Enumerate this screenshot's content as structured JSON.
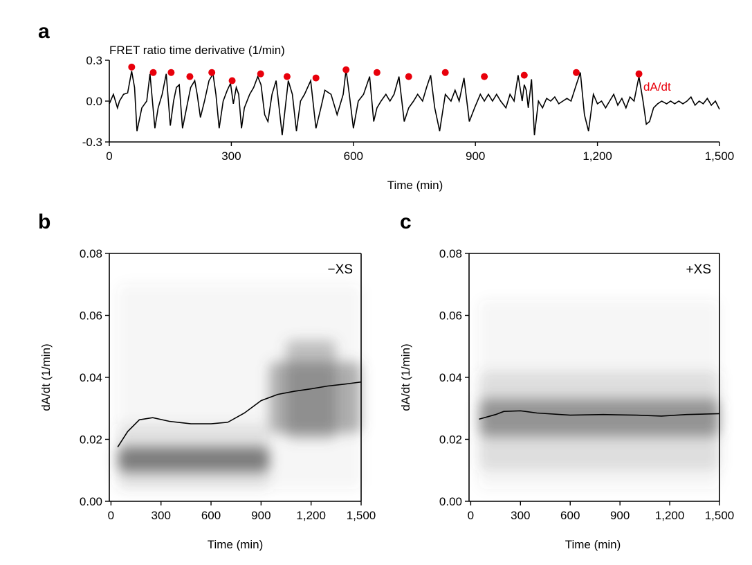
{
  "colors": {
    "peak": "#e8000b",
    "line": "#000000",
    "density": "#555555"
  },
  "panel_letters": {
    "a": "a",
    "b": "b",
    "c": "c"
  },
  "chart_data": [
    {
      "panel": "a",
      "type": "line",
      "title": "FRET ratio time derivative (1/min)",
      "xlabel": "Time (min)",
      "ylabel": "",
      "xlim": [
        0,
        1500
      ],
      "ylim": [
        -0.3,
        0.3
      ],
      "xticks": [
        0,
        300,
        600,
        900,
        1200,
        1500
      ],
      "xtick_labels": [
        "0",
        "300",
        "600",
        "900",
        "1,200",
        "1,500"
      ],
      "yticks": [
        -0.3,
        0.0,
        0.3
      ],
      "ytick_labels": [
        "-0.3",
        "0.0",
        "0.3"
      ],
      "grid": false,
      "annotation": "dA/dt",
      "trace_x": [
        0,
        10,
        20,
        25,
        35,
        45,
        55,
        62,
        68,
        80,
        92,
        100,
        112,
        120,
        130,
        140,
        150,
        158,
        165,
        172,
        180,
        190,
        200,
        210,
        216,
        224,
        234,
        245,
        255,
        262,
        270,
        280,
        290,
        298,
        305,
        312,
        318,
        325,
        332,
        345,
        355,
        365,
        373,
        382,
        390,
        400,
        410,
        425,
        440,
        450,
        460,
        470,
        480,
        495,
        508,
        520,
        530,
        545,
        560,
        575,
        582,
        590,
        600,
        612,
        625,
        640,
        650,
        658,
        668,
        680,
        690,
        700,
        712,
        725,
        736,
        748,
        758,
        770,
        780,
        790,
        800,
        812,
        826,
        840,
        850,
        860,
        872,
        885,
        898,
        912,
        922,
        932,
        942,
        952,
        962,
        975,
        985,
        995,
        1005,
        1015,
        1020,
        1025,
        1030,
        1038,
        1045,
        1055,
        1065,
        1075,
        1085,
        1095,
        1105,
        1115,
        1125,
        1135,
        1148,
        1158,
        1168,
        1178,
        1190,
        1200,
        1210,
        1220,
        1230,
        1240,
        1250,
        1260,
        1270,
        1280,
        1290,
        1302,
        1312,
        1320,
        1328,
        1338,
        1348,
        1358,
        1370,
        1380,
        1390,
        1400,
        1410,
        1420,
        1430,
        1440,
        1450,
        1460,
        1470,
        1480,
        1490,
        1500
      ],
      "trace_y": [
        -0.02,
        0.05,
        -0.05,
        0.0,
        0.05,
        0.06,
        0.22,
        0.1,
        -0.22,
        -0.05,
        0.0,
        0.2,
        -0.2,
        -0.05,
        0.05,
        0.2,
        -0.18,
        0.0,
        0.1,
        0.12,
        -0.2,
        -0.05,
        0.1,
        0.15,
        0.05,
        -0.12,
        0.0,
        0.15,
        0.2,
        0.05,
        -0.2,
        0.0,
        0.08,
        0.13,
        -0.02,
        0.1,
        0.05,
        -0.2,
        -0.05,
        0.05,
        0.1,
        0.18,
        0.12,
        -0.1,
        -0.15,
        0.05,
        0.15,
        -0.25,
        0.15,
        0.05,
        -0.22,
        0.0,
        0.05,
        0.15,
        -0.2,
        -0.05,
        0.08,
        0.05,
        -0.1,
        0.05,
        0.23,
        0.05,
        -0.2,
        0.0,
        0.05,
        0.18,
        -0.15,
        -0.05,
        0.0,
        0.05,
        0.0,
        0.05,
        0.18,
        -0.15,
        -0.05,
        0.0,
        0.05,
        0.0,
        0.1,
        0.19,
        -0.05,
        -0.22,
        0.05,
        0.0,
        0.08,
        0.0,
        0.17,
        -0.15,
        -0.05,
        0.05,
        0.0,
        0.05,
        0.0,
        0.05,
        0.0,
        -0.05,
        0.05,
        0.0,
        0.19,
        0.0,
        0.12,
        0.08,
        -0.05,
        0.16,
        -0.25,
        0.0,
        -0.05,
        0.02,
        0.0,
        0.03,
        -0.02,
        0.0,
        0.02,
        0.0,
        0.12,
        0.21,
        -0.1,
        -0.22,
        0.05,
        -0.02,
        0.0,
        -0.05,
        0.0,
        0.05,
        -0.03,
        0.02,
        -0.05,
        0.03,
        0.0,
        0.18,
        0.0,
        -0.17,
        -0.15,
        -0.05,
        -0.02,
        0.0,
        -0.02,
        0.0,
        -0.02,
        0.0,
        -0.02,
        0.0,
        0.03,
        -0.03,
        0.0,
        -0.02,
        0.02,
        -0.03,
        0.0,
        -0.06
      ],
      "peaks_x": [
        55,
        108,
        152,
        198,
        252,
        302,
        372,
        437,
        508,
        582,
        658,
        736,
        826,
        922,
        1020,
        1148,
        1302
      ],
      "peaks_y": [
        0.25,
        0.21,
        0.21,
        0.18,
        0.21,
        0.15,
        0.2,
        0.18,
        0.17,
        0.23,
        0.21,
        0.18,
        0.21,
        0.18,
        0.19,
        0.21,
        0.2
      ]
    },
    {
      "panel": "b",
      "type": "heatmap",
      "tag": "−XS",
      "xlabel": "Time (min)",
      "ylabel": "dA/dt (1/min)",
      "xlim": [
        -10,
        1500
      ],
      "ylim": [
        0.0,
        0.08
      ],
      "xticks": [
        0,
        300,
        600,
        900,
        1200,
        1500
      ],
      "xtick_labels": [
        "0",
        "300",
        "600",
        "900",
        "1,200",
        "1,500"
      ],
      "yticks": [
        0.0,
        0.02,
        0.04,
        0.06,
        0.08
      ],
      "ytick_labels": [
        "0.00",
        "0.02",
        "0.04",
        "0.06",
        "0.08"
      ],
      "grid": false,
      "density_blobs": [
        {
          "x": [
            40,
            950
          ],
          "y": [
            0.0095,
            0.0175
          ],
          "opacity": 0.7
        },
        {
          "x": [
            40,
            950
          ],
          "y": [
            0.004,
            0.025
          ],
          "opacity": 0.12
        },
        {
          "x": [
            950,
            1500
          ],
          "y": [
            0.022,
            0.045
          ],
          "opacity": 0.45
        },
        {
          "x": [
            1050,
            1350
          ],
          "y": [
            0.02,
            0.052
          ],
          "opacity": 0.35
        },
        {
          "x": [
            40,
            1500
          ],
          "y": [
            0.004,
            0.07
          ],
          "opacity": 0.05
        }
      ],
      "mean_x": [
        40,
        100,
        170,
        250,
        350,
        480,
        600,
        700,
        800,
        900,
        1000,
        1100,
        1200,
        1300,
        1400,
        1500
      ],
      "mean_y": [
        0.0175,
        0.0225,
        0.0263,
        0.027,
        0.0258,
        0.025,
        0.025,
        0.0255,
        0.0285,
        0.0325,
        0.0345,
        0.0355,
        0.0363,
        0.0372,
        0.0378,
        0.0385
      ]
    },
    {
      "panel": "c",
      "type": "heatmap",
      "tag": "+XS",
      "xlabel": "Time (min)",
      "ylabel": "dA/dt (1/min)",
      "xlim": [
        -10,
        1500
      ],
      "ylim": [
        0.0,
        0.08
      ],
      "xticks": [
        0,
        300,
        600,
        900,
        1200,
        1500
      ],
      "xtick_labels": [
        "0",
        "300",
        "600",
        "900",
        "1,200",
        "1,500"
      ],
      "yticks": [
        0.0,
        0.02,
        0.04,
        0.06,
        0.08
      ],
      "ytick_labels": [
        "0.00",
        "0.02",
        "0.04",
        "0.06",
        "0.08"
      ],
      "grid": false,
      "density_blobs": [
        {
          "x": [
            50,
            1500
          ],
          "y": [
            0.021,
            0.033
          ],
          "opacity": 0.55
        },
        {
          "x": [
            50,
            1500
          ],
          "y": [
            0.01,
            0.042
          ],
          "opacity": 0.15
        },
        {
          "x": [
            50,
            1500
          ],
          "y": [
            0.004,
            0.065
          ],
          "opacity": 0.05
        }
      ],
      "mean_x": [
        50,
        150,
        200,
        300,
        400,
        600,
        800,
        1000,
        1150,
        1300,
        1500
      ],
      "mean_y": [
        0.0265,
        0.028,
        0.029,
        0.0292,
        0.0285,
        0.0278,
        0.028,
        0.0278,
        0.0275,
        0.028,
        0.0283
      ]
    }
  ]
}
